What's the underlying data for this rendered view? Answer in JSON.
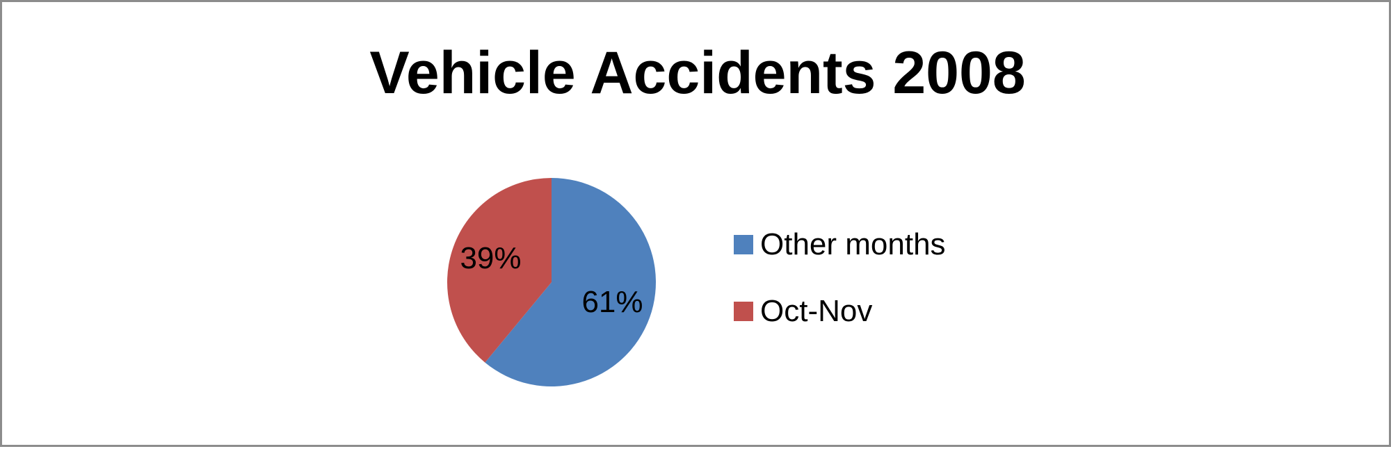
{
  "chart_data": {
    "type": "pie",
    "title": "Vehicle Accidents 2008",
    "slices": [
      {
        "name": "Other months",
        "value": 61,
        "label": "61%",
        "color": "#4F81BD"
      },
      {
        "name": "Oct-Nov",
        "value": 39,
        "label": "39%",
        "color": "#C0504D"
      }
    ],
    "legend_position": "right",
    "start_angle_deg": 0,
    "direction": "clockwise"
  }
}
